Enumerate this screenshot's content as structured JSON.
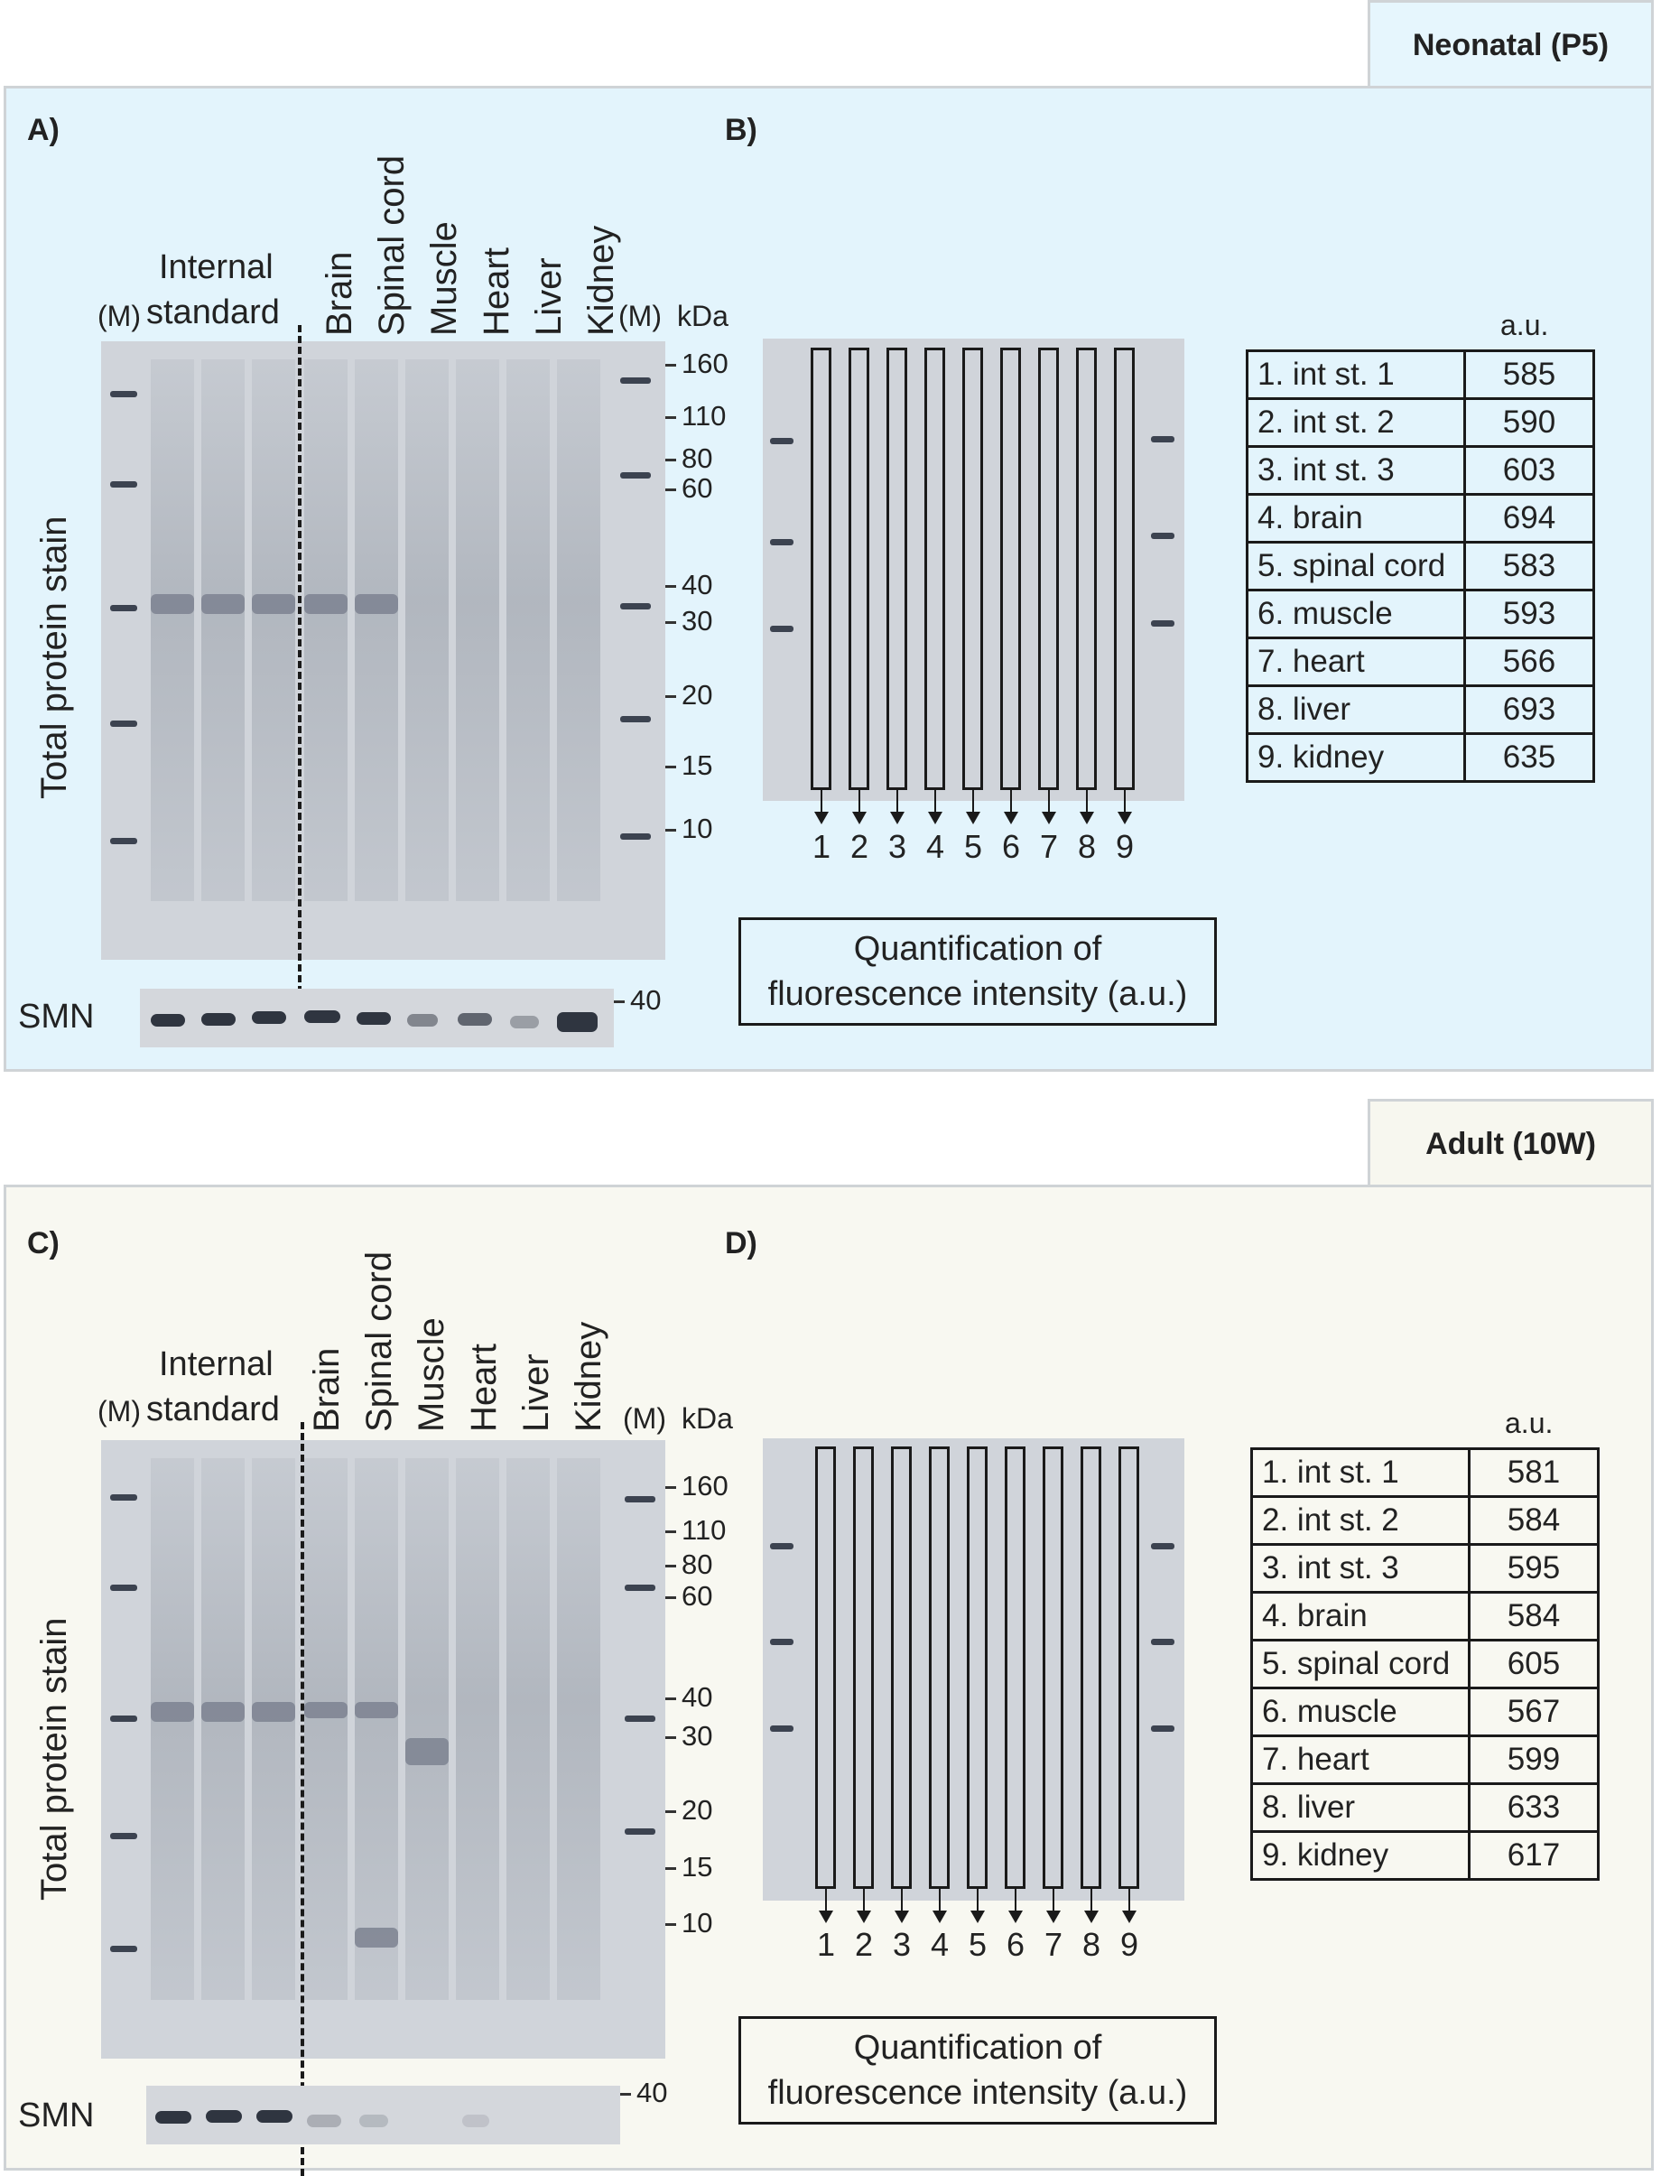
{
  "neonatal": {
    "tag": "Neonatal (P5)",
    "panel_a": "A)",
    "panel_b": "B)",
    "internal_standard": [
      "Internal",
      "standard"
    ],
    "marker": "(M)",
    "marker_right": "(M)",
    "kda": "kDa",
    "tissues": [
      "Brain",
      "Spinal cord",
      "Muscle",
      "Heart",
      "Liver",
      "Kidney"
    ],
    "y_label": "Total protein stain",
    "smn": "SMN",
    "kda_markers": [
      "160",
      "110",
      "80",
      "60",
      "40",
      "30",
      "20",
      "15",
      "10"
    ],
    "smn_marker": "40",
    "lane_numbers": [
      "1",
      "2",
      "3",
      "4",
      "5",
      "6",
      "7",
      "8",
      "9"
    ],
    "quant_label": [
      "Quantification of",
      "fluorescence intensity (a.u.)"
    ],
    "au_header": "a.u.",
    "table": [
      {
        "label": "1. int st. 1",
        "value": "585"
      },
      {
        "label": "2. int st. 2",
        "value": "590"
      },
      {
        "label": "3. int st. 3",
        "value": "603"
      },
      {
        "label": "4. brain",
        "value": "694"
      },
      {
        "label": "5. spinal cord",
        "value": "583"
      },
      {
        "label": "6. muscle",
        "value": "593"
      },
      {
        "label": "7. heart",
        "value": "566"
      },
      {
        "label": "8. liver",
        "value": "693"
      },
      {
        "label": "9. kidney",
        "value": "635"
      }
    ]
  },
  "adult": {
    "tag": "Adult (10W)",
    "panel_c": "C)",
    "panel_d": "D)",
    "internal_standard": [
      "Internal",
      "standard"
    ],
    "marker": "(M)",
    "marker_right": "(M)",
    "kda": "kDa",
    "tissues": [
      "Brain",
      "Spinal cord",
      "Muscle",
      "Heart",
      "Liver",
      "Kidney"
    ],
    "y_label": "Total protein stain",
    "smn": "SMN",
    "kda_markers": [
      "160",
      "110",
      "80",
      "60",
      "40",
      "30",
      "20",
      "15",
      "10"
    ],
    "smn_marker": "40",
    "lane_numbers": [
      "1",
      "2",
      "3",
      "4",
      "5",
      "6",
      "7",
      "8",
      "9"
    ],
    "quant_label": [
      "Quantification of",
      "fluorescence intensity (a.u.)"
    ],
    "au_header": "a.u.",
    "table": [
      {
        "label": "1. int st. 1",
        "value": "581"
      },
      {
        "label": "2. int st. 2",
        "value": "584"
      },
      {
        "label": "3. int st. 3",
        "value": "595"
      },
      {
        "label": "4. brain",
        "value": "584"
      },
      {
        "label": "5. spinal cord",
        "value": "605"
      },
      {
        "label": "6. muscle",
        "value": "567"
      },
      {
        "label": "7. heart",
        "value": "599"
      },
      {
        "label": "8. liver",
        "value": "633"
      },
      {
        "label": "9. kidney",
        "value": "617"
      }
    ]
  }
}
